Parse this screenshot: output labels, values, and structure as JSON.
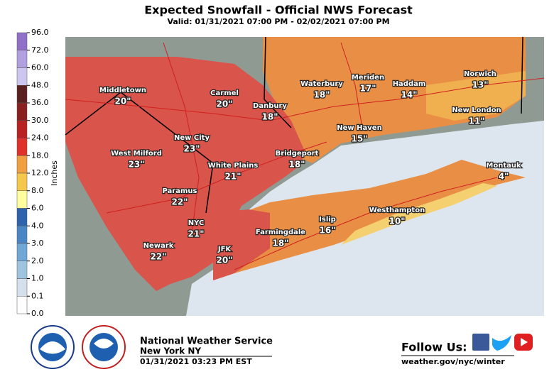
{
  "header": {
    "title": "Expected Snowfall - Official NWS Forecast",
    "subtitle": "Valid: 01/31/2021 07:00 PM - 02/02/2021 07:00 PM"
  },
  "legend": {
    "label": "Inches",
    "ticks": [
      "96.0",
      "72.0",
      "60.0",
      "48.0",
      "36.0",
      "30.0",
      "24.0",
      "18.0",
      "12.0",
      "8.0",
      "6.0",
      "4.0",
      "3.0",
      "2.0",
      "1.0",
      "0.1",
      "0.0"
    ],
    "colors": [
      "#9070c8",
      "#b0a0e0",
      "#cdc6f0",
      "#5a1f1f",
      "#8a1f1f",
      "#b82222",
      "#e0302a",
      "#f0a040",
      "#f5c84a",
      "#ffffa0",
      "#2f62ad",
      "#4a86c5",
      "#6fa7d6",
      "#a0c4e0",
      "#d4e0ec",
      "#ffffff"
    ]
  },
  "cities": [
    {
      "name": "Middletown",
      "amount": "20\""
    },
    {
      "name": "Carmel",
      "amount": "20\""
    },
    {
      "name": "Danbury",
      "amount": "18\""
    },
    {
      "name": "Waterbury",
      "amount": "18\""
    },
    {
      "name": "Meriden",
      "amount": "17\""
    },
    {
      "name": "Haddam",
      "amount": "14\""
    },
    {
      "name": "Norwich",
      "amount": "13\""
    },
    {
      "name": "New London",
      "amount": "11\""
    },
    {
      "name": "New Haven",
      "amount": "15\""
    },
    {
      "name": "New City",
      "amount": "23\""
    },
    {
      "name": "West Milford",
      "amount": "23\""
    },
    {
      "name": "Bridgeport",
      "amount": "18\""
    },
    {
      "name": "White Plains",
      "amount": "21\""
    },
    {
      "name": "Montauk",
      "amount": "4\""
    },
    {
      "name": "Paramus",
      "amount": "22\""
    },
    {
      "name": "Islip",
      "amount": "16\""
    },
    {
      "name": "Westhampton",
      "amount": "10\""
    },
    {
      "name": "NYC",
      "amount": "21\""
    },
    {
      "name": "Farmingdale",
      "amount": "18\""
    },
    {
      "name": "Newark",
      "amount": "22\""
    },
    {
      "name": "JFK",
      "amount": "20\""
    }
  ],
  "footer": {
    "office": "National Weather Service",
    "location": "New York NY",
    "issued": "01/31/2021 03:23 PM EST",
    "follow": "Follow Us:",
    "url": "weather.gov/nyc/winter"
  }
}
